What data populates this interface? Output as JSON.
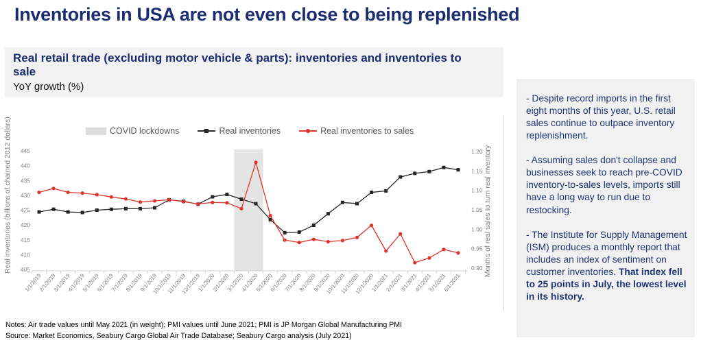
{
  "page": {
    "title": "Inventories in USA are not even close to being replenished",
    "notes_line1": "Notes: Air trade values until May 2021 (in weight); PMI values until June 2021; PMI is JP Morgan Global Manufacturing PMI",
    "notes_line2": "Source: Market Economics, Seabury Cargo Global Air Trade Database; Seabury Cargo analysis (July 2021)"
  },
  "subtitle_block": {
    "heading": "Real retail trade (excluding motor vehicle & parts): inventories and inventories to sale",
    "unit_label": "YoY growth (%)"
  },
  "side_panel": {
    "paragraphs": [
      {
        "text": "- Despite record imports in the first eight months of this year, U.S. retail sales continue to outpace inventory replenishment.",
        "bold_tail": ""
      },
      {
        "text": "- Assuming sales don't collapse and businesses seek to reach pre-COVID inventory-to-sales levels, imports still have a long way to run due to restocking.",
        "bold_tail": ""
      },
      {
        "text": "- The Institute for Supply Management (ISM) produces a monthly report that includes an index of sentiment on customer inventories. ",
        "bold_tail": "That index fell to 25 points in July, the lowest level in its history."
      }
    ]
  },
  "colors": {
    "navy": "#1b2d70",
    "series_black": "#262626",
    "series_red": "#e0332c",
    "band_gray": "#e4e4e4",
    "axis_text": "#7f7f7f",
    "legend_text": "#595959",
    "axis_line": "#d2d2d2",
    "box_bg": "#f2f2f2"
  },
  "chart_data": {
    "type": "line",
    "title": "Real retail trade (excluding motor vehicle & parts): inventories and inventories to sale",
    "grid": false,
    "legend_position": "top",
    "categories": [
      "1/1/2019",
      "2/1/2019",
      "3/1/2019",
      "4/1/2019",
      "5/1/2019",
      "6/1/2019",
      "7/1/2019",
      "8/1/2019",
      "9/1/2019",
      "10/1/2019",
      "11/1/2019",
      "12/1/2019",
      "1/1/2020",
      "2/1/2020",
      "3/1/2020",
      "4/1/2020",
      "5/1/2020",
      "6/1/2020",
      "7/1/2020",
      "8/1/2020",
      "9/1/2020",
      "10/1/2020",
      "11/1/2020",
      "12/1/2020",
      "1/1/2021",
      "2/1/2021",
      "3/1/2021",
      "4/1/2021",
      "5/1/2021",
      "6/1/2021"
    ],
    "series": [
      {
        "name": "Real inventories",
        "axis": "left",
        "marker": "square",
        "color": "#262626",
        "values": [
          424.4,
          425.3,
          424.4,
          424.2,
          425.0,
          425.3,
          425.5,
          425.5,
          425.8,
          428.5,
          428.0,
          427.0,
          429.5,
          430.3,
          428.7,
          427.2,
          421.8,
          417.4,
          417.6,
          419.9,
          423.8,
          427.6,
          427.2,
          431.0,
          431.5,
          436.2,
          437.4,
          438.0,
          439.4,
          438.6
        ]
      },
      {
        "name": "Real inventories to sales",
        "axis": "right",
        "marker": "circle",
        "color": "#e0332c",
        "values": [
          1.095,
          1.105,
          1.095,
          1.093,
          1.089,
          1.083,
          1.078,
          1.07,
          1.073,
          1.076,
          1.071,
          1.065,
          1.069,
          1.068,
          1.053,
          1.172,
          1.035,
          0.972,
          0.966,
          0.974,
          0.968,
          0.971,
          0.979,
          1.01,
          0.944,
          0.988,
          0.914,
          0.926,
          0.948,
          0.939
        ]
      }
    ],
    "band": {
      "label": "COVID lockdowns",
      "from_index": 13.5,
      "to_index": 15.5,
      "color": "#e4e4e4"
    },
    "left_axis": {
      "title": "Real inventories (billions of chained 2012 dollars)",
      "ticks": [
        445,
        440,
        435,
        430,
        425,
        420,
        415,
        410,
        405
      ],
      "range": [
        405,
        445
      ]
    },
    "right_axis": {
      "title": "Months of real sales to turn real inventory",
      "ticks": [
        1.2,
        1.15,
        1.1,
        1.05,
        1.0,
        0.95,
        0.9
      ],
      "range": [
        0.9,
        1.2
      ]
    }
  }
}
